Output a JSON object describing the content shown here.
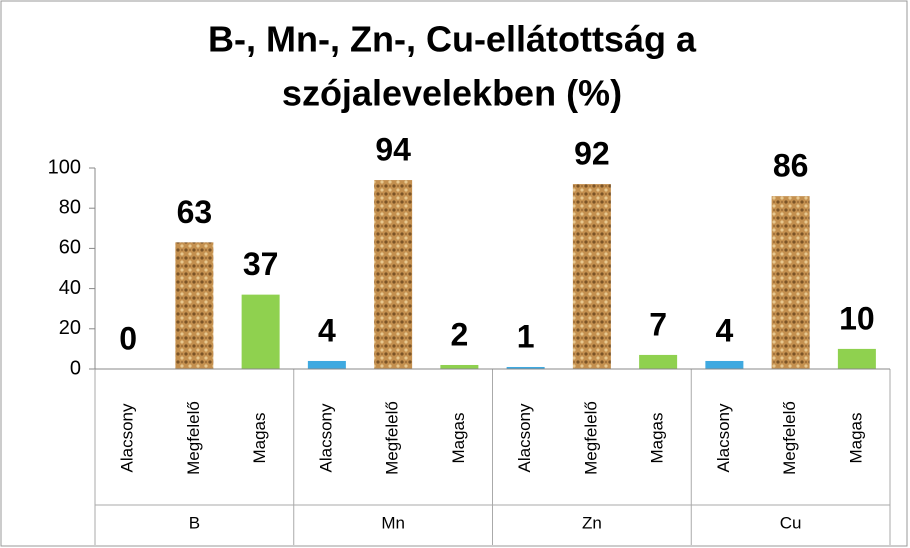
{
  "chart_data": {
    "type": "bar",
    "title": [
      "B-, Mn-, Zn-, Cu-ellátottság a",
      "szójalevelekben (%)"
    ],
    "categories": [
      "B",
      "Mn",
      "Zn",
      "Cu"
    ],
    "series": [
      {
        "name": "Alacsony",
        "color": "#3fa9e0",
        "values": [
          0,
          4,
          1,
          4
        ]
      },
      {
        "name": "Megfelelő",
        "color": "#c4904f",
        "values": [
          63,
          94,
          92,
          86
        ]
      },
      {
        "name": "Magas",
        "color": "#8fd14f",
        "values": [
          37,
          2,
          7,
          10
        ]
      }
    ],
    "ylim": [
      0,
      100
    ],
    "yticks": [
      0,
      20,
      40,
      60,
      80,
      100
    ],
    "grid": false
  }
}
